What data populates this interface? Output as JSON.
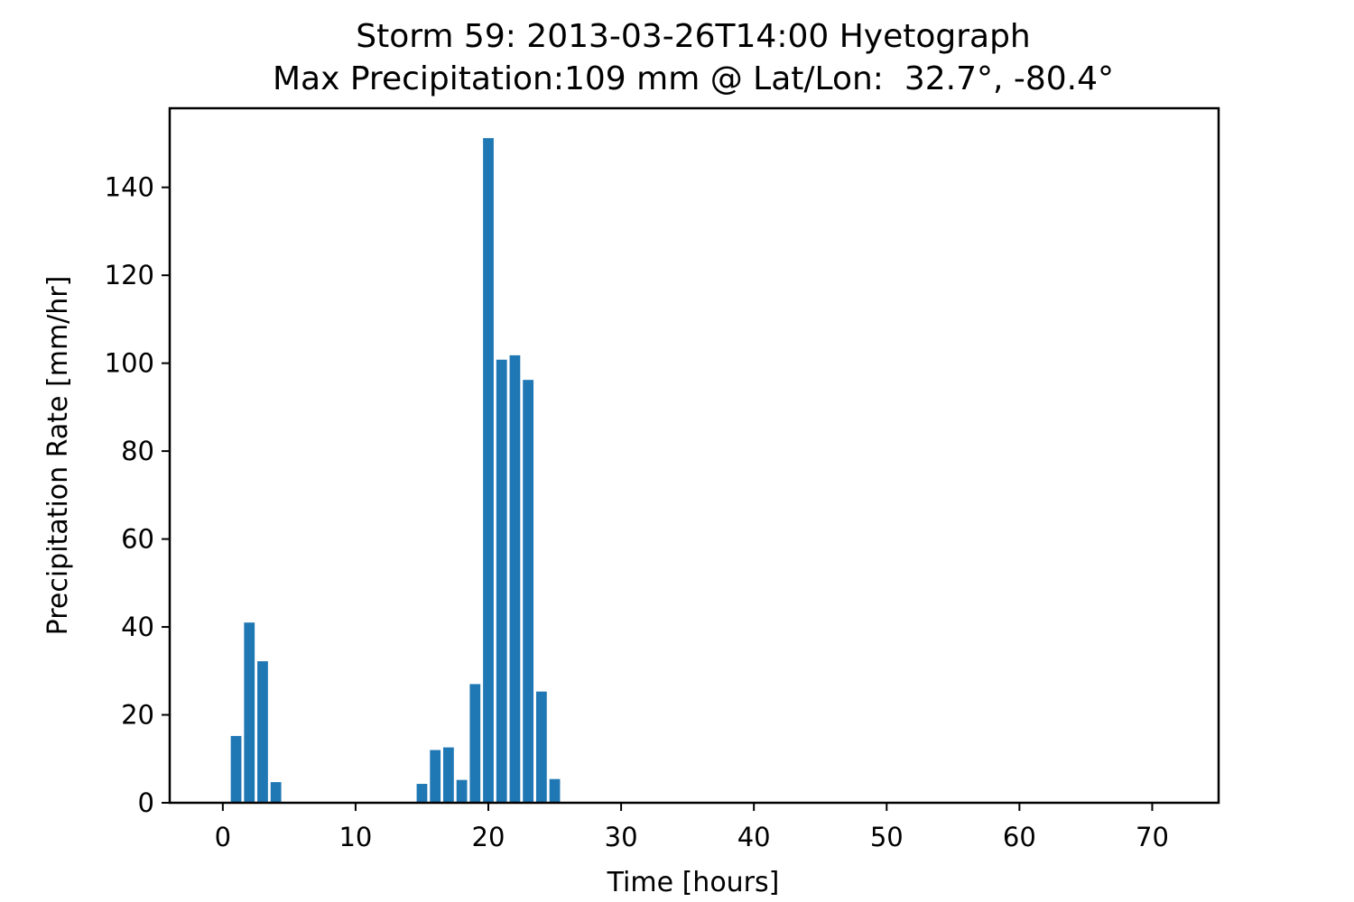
{
  "chart_data": {
    "type": "bar",
    "title": "Storm 59: 2013-03-26T14:00 Hyetograph",
    "subtitle": "Max Precipitation:109 mm @ Lat/Lon:  32.7°, -80.4°",
    "xlabel": "Time [hours]",
    "ylabel": "Precipitation Rate [mm/hr]",
    "xlim": [
      -4,
      75
    ],
    "ylim": [
      0,
      158
    ],
    "xticks": [
      0,
      10,
      20,
      30,
      40,
      50,
      60,
      70
    ],
    "yticks": [
      0,
      20,
      40,
      60,
      80,
      100,
      120,
      140
    ],
    "grid": false,
    "bar_color": "#1f77b4",
    "x": [
      1,
      2,
      3,
      4,
      15,
      16,
      17,
      18,
      19,
      20,
      21,
      22,
      23,
      24,
      25
    ],
    "values": [
      15.2,
      41.0,
      32.2,
      4.7,
      4.3,
      12.0,
      12.6,
      5.2,
      27.0,
      151.2,
      100.8,
      101.8,
      96.2,
      25.3,
      5.4
    ]
  }
}
